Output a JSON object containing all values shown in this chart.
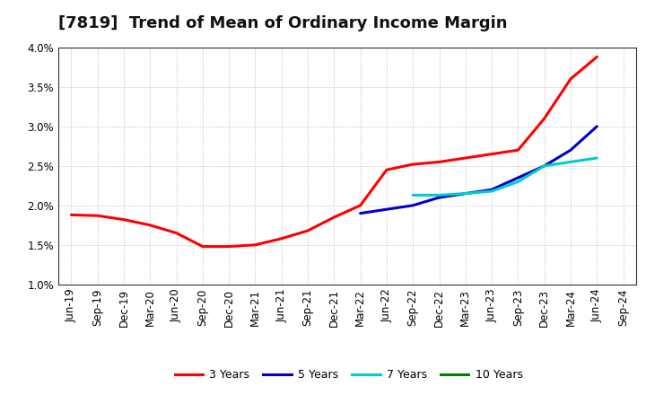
{
  "title": "[7819]  Trend of Mean of Ordinary Income Margin",
  "ylim": [
    0.01,
    0.04
  ],
  "yticks": [
    0.01,
    0.015,
    0.02,
    0.025,
    0.03,
    0.035,
    0.04
  ],
  "ytick_labels": [
    "1.0%",
    "1.5%",
    "2.0%",
    "2.5%",
    "3.0%",
    "3.5%",
    "4.0%"
  ],
  "x_labels": [
    "Jun-19",
    "Sep-19",
    "Dec-19",
    "Mar-20",
    "Jun-20",
    "Sep-20",
    "Dec-20",
    "Mar-21",
    "Jun-21",
    "Sep-21",
    "Dec-21",
    "Mar-22",
    "Jun-22",
    "Sep-22",
    "Dec-22",
    "Mar-23",
    "Jun-23",
    "Sep-23",
    "Dec-23",
    "Mar-24",
    "Jun-24",
    "Sep-24"
  ],
  "series_3y": [
    0.0188,
    0.0187,
    0.0182,
    0.0175,
    0.0165,
    0.0148,
    0.0148,
    0.015,
    0.0158,
    0.0168,
    0.0185,
    0.02,
    0.0245,
    0.0252,
    0.0255,
    0.026,
    0.0265,
    0.027,
    0.031,
    0.036,
    0.0388,
    null
  ],
  "series_5y": [
    null,
    null,
    null,
    null,
    null,
    null,
    null,
    null,
    null,
    null,
    null,
    0.019,
    0.0195,
    0.02,
    0.021,
    0.0215,
    0.022,
    0.0235,
    0.025,
    0.027,
    0.03,
    null
  ],
  "series_7y": [
    null,
    null,
    null,
    null,
    null,
    null,
    null,
    null,
    null,
    null,
    null,
    null,
    null,
    0.0213,
    0.0213,
    0.0215,
    0.0218,
    0.023,
    0.025,
    0.0255,
    0.026,
    null
  ],
  "series_10y": [
    null,
    null,
    null,
    null,
    null,
    null,
    null,
    null,
    null,
    null,
    null,
    null,
    null,
    null,
    null,
    null,
    null,
    null,
    null,
    null,
    null,
    null
  ],
  "colors": {
    "3y": "#FF0000",
    "5y": "#0000CC",
    "7y": "#00CCCC",
    "10y": "#008000"
  },
  "legend_labels": [
    "3 Years",
    "5 Years",
    "7 Years",
    "10 Years"
  ],
  "background_color": "#FFFFFF",
  "grid_color": "#BBBBBB",
  "title_fontsize": 13,
  "tick_fontsize": 8.5,
  "legend_fontsize": 9
}
